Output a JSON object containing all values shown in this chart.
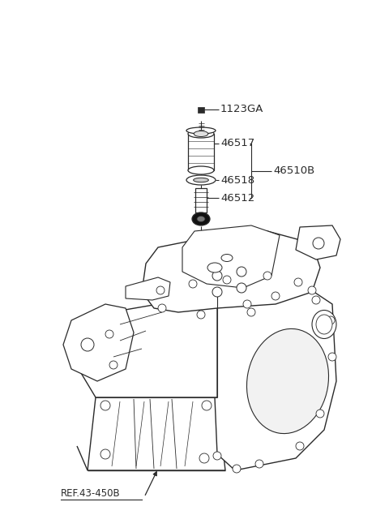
{
  "bg_color": "#ffffff",
  "line_color": "#2a2a2a",
  "fig_width": 4.8,
  "fig_height": 6.56,
  "dpi": 100,
  "parts": {
    "bolt_label": "1123GA",
    "cyl_label": "46517",
    "oring_label": "46518",
    "bracket_label": "46510B",
    "shaft_label": "46512",
    "ref_label": "REF.43-450B"
  },
  "label_fontsize": 9.5,
  "ref_fontsize": 8.5
}
